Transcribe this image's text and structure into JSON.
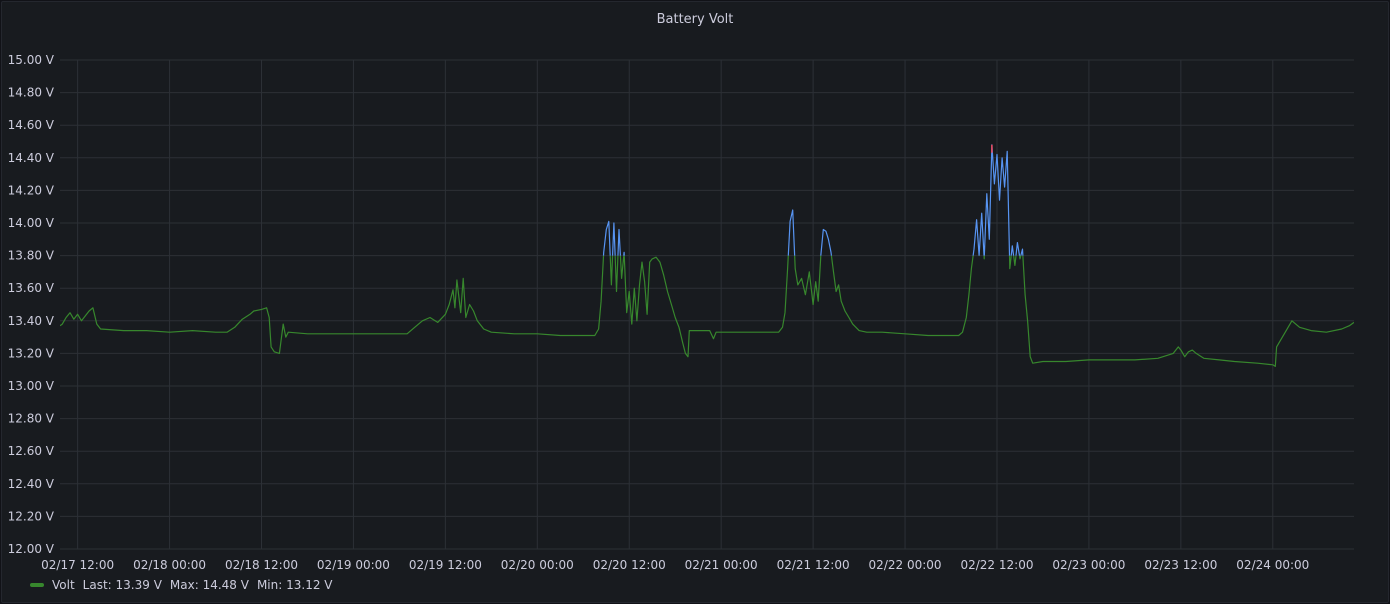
{
  "panel": {
    "title": "Battery Volt"
  },
  "colors": {
    "series": "#37872d",
    "threshold": "#5794f2",
    "peak": "#f2495c",
    "grid": "#2c3036",
    "text": "#ccccdc"
  },
  "chart_data": {
    "type": "line",
    "title": "Battery Volt",
    "xlabel": "",
    "ylabel": "",
    "ylim": [
      12.0,
      15.0
    ],
    "y_unit": "V",
    "y_ticks": [
      "12.00 V",
      "12.20 V",
      "12.40 V",
      "12.60 V",
      "12.80 V",
      "13.00 V",
      "13.20 V",
      "13.40 V",
      "13.60 V",
      "13.80 V",
      "14.00 V",
      "14.20 V",
      "14.40 V",
      "14.60 V",
      "14.80 V",
      "15.00 V"
    ],
    "x_tick_labels": [
      "02/17 12:00",
      "02/18 00:00",
      "02/18 12:00",
      "02/19 00:00",
      "02/19 12:00",
      "02/20 00:00",
      "02/20 12:00",
      "02/21 00:00",
      "02/21 12:00",
      "02/22 00:00",
      "02/22 12:00",
      "02/23 00:00",
      "02/23 12:00",
      "02/24 00:00"
    ],
    "x_range": [
      "02/17 09:42",
      "02/24 10:36"
    ],
    "threshold": 13.8,
    "grid": true,
    "legend": "bottom-left",
    "series": [
      {
        "name": "Volt",
        "color": "#37872d",
        "points": [
          [
            "02/17 09:42",
            13.37
          ],
          [
            "02/17 10:00",
            13.38
          ],
          [
            "02/17 10:30",
            13.42
          ],
          [
            "02/17 11:00",
            13.45
          ],
          [
            "02/17 11:30",
            13.41
          ],
          [
            "02/17 12:00",
            13.44
          ],
          [
            "02/17 12:30",
            13.4
          ],
          [
            "02/17 13:00",
            13.43
          ],
          [
            "02/17 13:30",
            13.46
          ],
          [
            "02/17 14:00",
            13.48
          ],
          [
            "02/17 14:30",
            13.38
          ],
          [
            "02/17 15:00",
            13.35
          ],
          [
            "02/17 18:00",
            13.34
          ],
          [
            "02/17 21:00",
            13.34
          ],
          [
            "02/18 00:00",
            13.33
          ],
          [
            "02/18 03:00",
            13.34
          ],
          [
            "02/18 06:00",
            13.33
          ],
          [
            "02/18 07:30",
            13.33
          ],
          [
            "02/18 08:30",
            13.36
          ],
          [
            "02/18 09:30",
            13.41
          ],
          [
            "02/18 10:30",
            13.44
          ],
          [
            "02/18 11:00",
            13.46
          ],
          [
            "02/18 12:00",
            13.47
          ],
          [
            "02/18 12:40",
            13.48
          ],
          [
            "02/18 13:00",
            13.42
          ],
          [
            "02/18 13:15",
            13.24
          ],
          [
            "02/18 13:40",
            13.21
          ],
          [
            "02/18 14:20",
            13.2
          ],
          [
            "02/18 14:50",
            13.38
          ],
          [
            "02/18 15:10",
            13.3
          ],
          [
            "02/18 15:30",
            13.33
          ],
          [
            "02/18 18:00",
            13.32
          ],
          [
            "02/18 21:00",
            13.32
          ],
          [
            "02/19 00:00",
            13.32
          ],
          [
            "02/19 03:00",
            13.32
          ],
          [
            "02/19 06:00",
            13.32
          ],
          [
            "02/19 07:00",
            13.32
          ],
          [
            "02/19 08:00",
            13.36
          ],
          [
            "02/19 09:00",
            13.4
          ],
          [
            "02/19 10:00",
            13.42
          ],
          [
            "02/19 11:00",
            13.39
          ],
          [
            "02/19 12:00",
            13.44
          ],
          [
            "02/19 12:30",
            13.5
          ],
          [
            "02/19 13:00",
            13.59
          ],
          [
            "02/19 13:15",
            13.48
          ],
          [
            "02/19 13:30",
            13.65
          ],
          [
            "02/19 14:00",
            13.45
          ],
          [
            "02/19 14:20",
            13.66
          ],
          [
            "02/19 14:40",
            13.42
          ],
          [
            "02/19 15:10",
            13.5
          ],
          [
            "02/19 15:40",
            13.46
          ],
          [
            "02/19 16:10",
            13.4
          ],
          [
            "02/19 17:00",
            13.35
          ],
          [
            "02/19 18:00",
            13.33
          ],
          [
            "02/19 21:00",
            13.32
          ],
          [
            "02/20 00:00",
            13.32
          ],
          [
            "02/20 03:00",
            13.31
          ],
          [
            "02/20 06:00",
            13.31
          ],
          [
            "02/20 07:30",
            13.31
          ],
          [
            "02/20 08:00",
            13.35
          ],
          [
            "02/20 08:20",
            13.52
          ],
          [
            "02/20 08:40",
            13.82
          ],
          [
            "02/20 09:00",
            13.96
          ],
          [
            "02/20 09:20",
            14.01
          ],
          [
            "02/20 09:40",
            13.62
          ],
          [
            "02/20 10:00",
            14.0
          ],
          [
            "02/20 10:20",
            13.58
          ],
          [
            "02/20 10:40",
            13.96
          ],
          [
            "02/20 11:00",
            13.66
          ],
          [
            "02/20 11:20",
            13.82
          ],
          [
            "02/20 11:40",
            13.45
          ],
          [
            "02/20 12:00",
            13.58
          ],
          [
            "02/20 12:20",
            13.38
          ],
          [
            "02/20 12:40",
            13.6
          ],
          [
            "02/20 13:00",
            13.4
          ],
          [
            "02/20 13:20",
            13.62
          ],
          [
            "02/20 13:40",
            13.76
          ],
          [
            "02/20 14:00",
            13.64
          ],
          [
            "02/20 14:20",
            13.44
          ],
          [
            "02/20 14:40",
            13.76
          ],
          [
            "02/20 15:00",
            13.78
          ],
          [
            "02/20 15:30",
            13.79
          ],
          [
            "02/20 16:00",
            13.76
          ],
          [
            "02/20 16:30",
            13.68
          ],
          [
            "02/20 17:00",
            13.58
          ],
          [
            "02/20 17:30",
            13.5
          ],
          [
            "02/20 18:00",
            13.42
          ],
          [
            "02/20 18:30",
            13.36
          ],
          [
            "02/20 19:00",
            13.26
          ],
          [
            "02/20 19:20",
            13.2
          ],
          [
            "02/20 19:40",
            13.18
          ],
          [
            "02/20 19:50",
            13.34
          ],
          [
            "02/20 21:00",
            13.34
          ],
          [
            "02/20 22:30",
            13.34
          ],
          [
            "02/20 23:00",
            13.29
          ],
          [
            "02/20 23:20",
            13.33
          ],
          [
            "02/21 00:00",
            13.33
          ],
          [
            "02/21 03:00",
            13.33
          ],
          [
            "02/21 06:00",
            13.33
          ],
          [
            "02/21 07:30",
            13.33
          ],
          [
            "02/21 08:00",
            13.36
          ],
          [
            "02/21 08:20",
            13.45
          ],
          [
            "02/21 08:40",
            13.72
          ],
          [
            "02/21 09:00",
            14.01
          ],
          [
            "02/21 09:20",
            14.08
          ],
          [
            "02/21 09:40",
            13.72
          ],
          [
            "02/21 10:00",
            13.62
          ],
          [
            "02/21 10:30",
            13.66
          ],
          [
            "02/21 11:00",
            13.56
          ],
          [
            "02/21 11:30",
            13.7
          ],
          [
            "02/21 12:00",
            13.5
          ],
          [
            "02/21 12:20",
            13.64
          ],
          [
            "02/21 12:40",
            13.52
          ],
          [
            "02/21 13:00",
            13.8
          ],
          [
            "02/21 13:20",
            13.96
          ],
          [
            "02/21 13:40",
            13.95
          ],
          [
            "02/21 14:00",
            13.9
          ],
          [
            "02/21 14:20",
            13.82
          ],
          [
            "02/21 14:40",
            13.7
          ],
          [
            "02/21 15:00",
            13.58
          ],
          [
            "02/21 15:20",
            13.62
          ],
          [
            "02/21 15:40",
            13.52
          ],
          [
            "02/21 16:10",
            13.46
          ],
          [
            "02/21 16:40",
            13.42
          ],
          [
            "02/21 17:10",
            13.38
          ],
          [
            "02/21 18:00",
            13.34
          ],
          [
            "02/21 19:00",
            13.33
          ],
          [
            "02/21 21:00",
            13.33
          ],
          [
            "02/22 00:00",
            13.32
          ],
          [
            "02/22 03:00",
            13.31
          ],
          [
            "02/22 06:00",
            13.31
          ],
          [
            "02/22 07:00",
            13.31
          ],
          [
            "02/22 07:30",
            13.33
          ],
          [
            "02/22 08:00",
            13.42
          ],
          [
            "02/22 08:20",
            13.56
          ],
          [
            "02/22 08:40",
            13.72
          ],
          [
            "02/22 09:00",
            13.84
          ],
          [
            "02/22 09:20",
            14.02
          ],
          [
            "02/22 09:40",
            13.8
          ],
          [
            "02/22 10:00",
            14.06
          ],
          [
            "02/22 10:20",
            13.78
          ],
          [
            "02/22 10:40",
            14.18
          ],
          [
            "02/22 11:00",
            13.9
          ],
          [
            "02/22 11:20",
            14.48
          ],
          [
            "02/22 11:40",
            14.24
          ],
          [
            "02/22 12:00",
            14.42
          ],
          [
            "02/22 12:20",
            14.14
          ],
          [
            "02/22 12:40",
            14.4
          ],
          [
            "02/22 13:00",
            14.22
          ],
          [
            "02/22 13:20",
            14.44
          ],
          [
            "02/22 13:40",
            13.72
          ],
          [
            "02/22 14:00",
            13.86
          ],
          [
            "02/22 14:20",
            13.74
          ],
          [
            "02/22 14:40",
            13.88
          ],
          [
            "02/22 15:00",
            13.78
          ],
          [
            "02/22 15:20",
            13.84
          ],
          [
            "02/22 15:40",
            13.56
          ],
          [
            "02/22 16:00",
            13.4
          ],
          [
            "02/22 16:20",
            13.18
          ],
          [
            "02/22 16:40",
            13.14
          ],
          [
            "02/22 18:00",
            13.15
          ],
          [
            "02/22 21:00",
            13.15
          ],
          [
            "02/23 00:00",
            13.16
          ],
          [
            "02/23 03:00",
            13.16
          ],
          [
            "02/23 06:00",
            13.16
          ],
          [
            "02/23 09:00",
            13.17
          ],
          [
            "02/23 11:00",
            13.2
          ],
          [
            "02/23 11:40",
            13.24
          ],
          [
            "02/23 12:00",
            13.22
          ],
          [
            "02/23 12:30",
            13.18
          ],
          [
            "02/23 13:00",
            13.21
          ],
          [
            "02/23 13:30",
            13.22
          ],
          [
            "02/23 14:00",
            13.2
          ],
          [
            "02/23 15:00",
            13.17
          ],
          [
            "02/23 17:00",
            13.16
          ],
          [
            "02/23 19:00",
            13.15
          ],
          [
            "02/23 22:00",
            13.14
          ],
          [
            "02/24 00:00",
            13.13
          ],
          [
            "02/24 00:20",
            13.12
          ],
          [
            "02/24 00:30",
            13.24
          ],
          [
            "02/24 01:30",
            13.32
          ],
          [
            "02/24 02:30",
            13.4
          ],
          [
            "02/24 03:30",
            13.36
          ],
          [
            "02/24 05:00",
            13.34
          ],
          [
            "02/24 07:00",
            13.33
          ],
          [
            "02/24 09:00",
            13.35
          ],
          [
            "02/24 10:00",
            13.37
          ],
          [
            "02/24 10:36",
            13.39
          ]
        ]
      }
    ]
  },
  "legend": {
    "series_name": "Volt",
    "last": "Last: 13.39 V",
    "max": "Max: 14.48 V",
    "min": "Min: 13.12 V"
  }
}
